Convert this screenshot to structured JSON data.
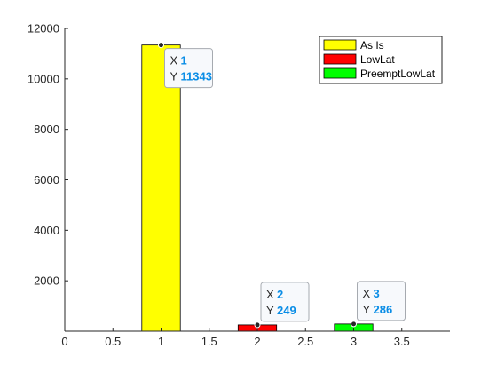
{
  "chart_data": {
    "type": "bar",
    "title": "",
    "xlabel": "",
    "ylabel": "",
    "xlim": [
      0,
      4
    ],
    "ylim": [
      0,
      12000
    ],
    "x_ticks": [
      "0",
      "0.5",
      "1",
      "1.5",
      "2",
      "2.5",
      "3",
      "3.5"
    ],
    "y_ticks": [
      "2000",
      "4000",
      "6000",
      "8000",
      "10000",
      "12000"
    ],
    "grid": false,
    "legend_position": "top-right",
    "series": [
      {
        "name": "As Is",
        "x": 1,
        "value": 11343,
        "color": "#ffff00"
      },
      {
        "name": "LowLat",
        "x": 2,
        "value": 249,
        "color": "#ff0000"
      },
      {
        "name": "PreemptLowLat",
        "x": 3,
        "value": 286,
        "color": "#00ff00"
      }
    ],
    "datatips": [
      {
        "x_key": "X",
        "x_value": "1",
        "y_key": "Y",
        "y_value": "11343"
      },
      {
        "x_key": "X",
        "x_value": "2",
        "y_key": "Y",
        "y_value": "249"
      },
      {
        "x_key": "X",
        "x_value": "3",
        "y_key": "Y",
        "y_value": "286"
      }
    ],
    "tip_value_color": "#0a8de6",
    "axis_color": "#262626"
  }
}
